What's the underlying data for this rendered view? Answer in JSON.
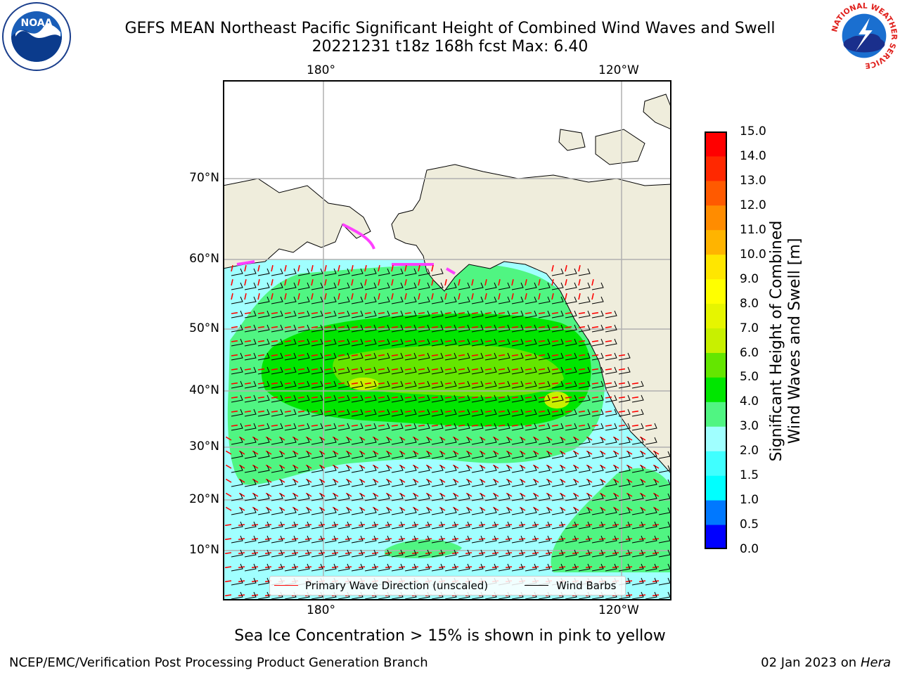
{
  "title_line1": "GEFS MEAN Northeast Pacific Significant Height of Combined Wind Waves and Swell",
  "title_line2": "20221231 t18z 168h fcst   Max: 6.40",
  "logos": {
    "left": "noaa-logo",
    "right": "nws-logo",
    "noaa_text": "NOAA",
    "nws_text": "NATIONAL WEATHER SERVICE"
  },
  "longitude_labels": {
    "left": "180°",
    "right": "120°W"
  },
  "latitude_labels": [
    "70°N",
    "60°N",
    "50°N",
    "40°N",
    "30°N",
    "20°N",
    "10°N"
  ],
  "colorbar": {
    "title_line1": "Significant Height of Combined",
    "title_line2": "Wind Waves and Swell [m]",
    "ticks": [
      "15.0",
      "14.0",
      "13.0",
      "12.0",
      "11.0",
      "10.0",
      "9.0",
      "8.0",
      "7.0",
      "6.0",
      "5.0",
      "4.0",
      "3.0",
      "2.0",
      "1.5",
      "1.0",
      "0.5",
      "0.0"
    ],
    "levels": [
      0,
      0.5,
      1.0,
      1.5,
      2.0,
      3.0,
      4.0,
      5.0,
      6.0,
      7.0,
      8.0,
      9.0,
      10.0,
      11.0,
      12.0,
      13.0,
      14.0,
      15.0
    ],
    "colors": [
      "#0000ff",
      "#0078ff",
      "#00ffff",
      "#40ffff",
      "#a0ffff",
      "#50f582",
      "#00e600",
      "#64e600",
      "#c8f000",
      "#e6f500",
      "#ffff00",
      "#ffe600",
      "#ffb400",
      "#ff8c00",
      "#ff5a00",
      "#ff2800",
      "#ff0000"
    ]
  },
  "legend": {
    "primary_wave": "Primary Wave Direction (unscaled)",
    "wind_barbs": "Wind Barbs",
    "primary_wave_color": "#ff0000",
    "wind_barbs_color": "#000000"
  },
  "map_colors": {
    "land": "#efeddc",
    "ice": "#ff40ff"
  },
  "ice_note": "Sea Ice Concentration > 15% is shown in pink to yellow",
  "footer_left": "NCEP/EMC/Verification Post Processing Product Generation Branch",
  "footer_right_date": "02 Jan 2023 on ",
  "footer_right_host": "Hera"
}
